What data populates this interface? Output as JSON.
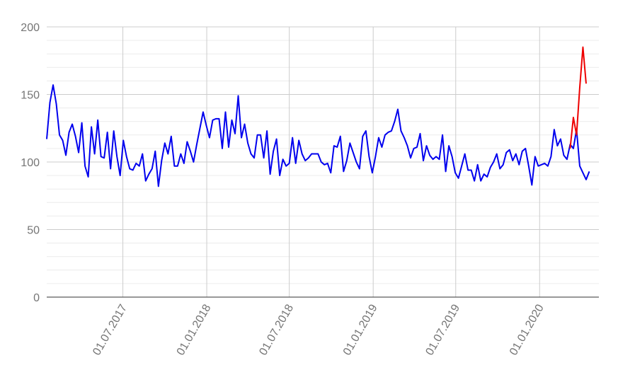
{
  "chart_data": {
    "type": "line",
    "title": "",
    "xlabel": "",
    "ylabel": "",
    "ylim": [
      0,
      200
    ],
    "xlim": [
      "2017-01-15",
      "2020-05-10"
    ],
    "y_ticks": [
      0,
      50,
      100,
      150,
      200
    ],
    "x_ticks": [
      {
        "date": "2017-07-01",
        "label": "01.07.2017"
      },
      {
        "date": "2018-01-01",
        "label": "01.01.2018"
      },
      {
        "date": "2018-07-01",
        "label": "01.07.2018"
      },
      {
        "date": "2019-01-01",
        "label": "01.01.2019"
      },
      {
        "date": "2019-07-01",
        "label": "01.07.2019"
      },
      {
        "date": "2020-01-01",
        "label": "01.01.2020"
      }
    ],
    "grid": true,
    "legend": "none",
    "series": [
      {
        "color": "#0000ee",
        "start": "2017-01-15",
        "step_days": 7,
        "values": [
          117,
          144,
          157,
          143,
          120,
          116,
          105,
          122,
          128,
          119,
          107,
          129,
          97,
          89,
          126,
          106,
          131,
          104,
          103,
          122,
          95,
          123,
          104,
          90,
          116,
          104,
          95,
          94,
          99,
          97,
          106,
          86,
          91,
          95,
          108,
          82,
          101,
          114,
          106,
          119,
          97,
          97,
          106,
          99,
          115,
          108,
          100,
          113,
          125,
          137,
          127,
          118,
          131,
          132,
          132,
          110,
          137,
          111,
          131,
          121,
          149,
          118,
          128,
          114,
          106,
          103,
          120,
          120,
          103,
          123,
          91,
          108,
          117,
          90,
          102,
          97,
          99,
          118,
          99,
          116,
          106,
          101,
          103,
          106,
          106,
          106,
          100,
          98,
          99,
          92,
          112,
          111,
          119,
          93,
          101,
          114,
          107,
          100,
          95,
          119,
          123,
          104,
          92,
          104,
          118,
          111,
          120,
          122,
          123,
          130,
          139,
          123,
          118,
          112,
          103,
          110,
          111,
          121,
          101,
          112,
          105,
          102,
          104,
          102,
          120,
          93,
          112,
          104,
          92,
          88,
          97,
          106,
          94,
          94,
          86,
          98,
          86,
          91,
          89,
          96,
          100,
          106,
          95,
          98,
          107,
          109,
          101,
          106,
          98,
          108,
          110,
          97,
          83,
          104,
          97,
          98,
          99,
          97,
          104,
          124,
          112,
          117,
          105,
          102,
          113,
          110,
          124,
          97,
          92,
          87,
          93
        ]
      },
      {
        "color": "#ee0000",
        "start": "2020-03-08",
        "step_days": 7,
        "values": [
          110,
          133,
          120,
          155,
          185,
          158
        ]
      }
    ]
  }
}
